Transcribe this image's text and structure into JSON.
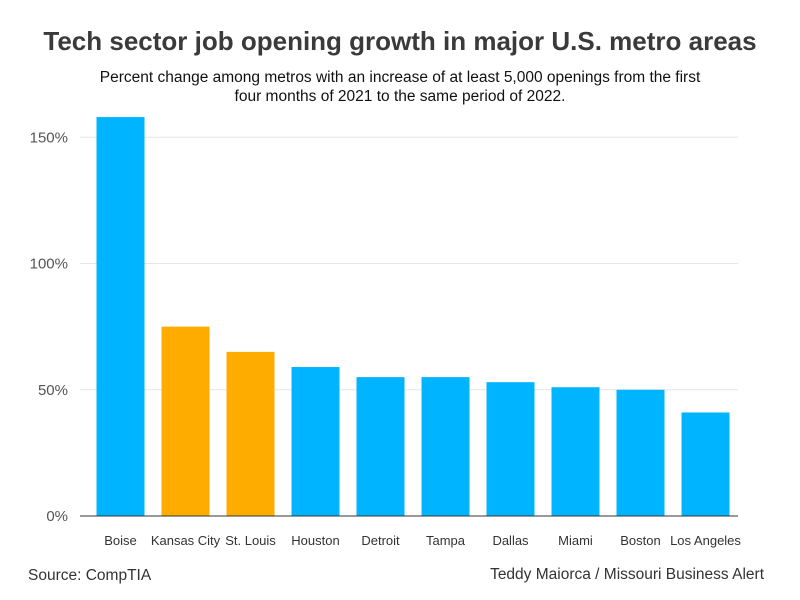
{
  "chart_data": {
    "type": "bar",
    "title": "Tech sector job opening growth in major U.S. metro areas",
    "subtitle_line1": "Percent change among metros with an increase of at least 5,000 openings from the first",
    "subtitle_line2": "four months of 2021 to the same period of 2022.",
    "categories": [
      "Boise",
      "Kansas City",
      "St. Louis",
      "Houston",
      "Detroit",
      "Tampa",
      "Dallas",
      "Miami",
      "Boston",
      "Los Angeles"
    ],
    "values": [
      158,
      75,
      65,
      59,
      55,
      55,
      53,
      51,
      50,
      41
    ],
    "highlight": [
      false,
      true,
      true,
      false,
      false,
      false,
      false,
      false,
      false,
      false
    ],
    "ylim": [
      0,
      160
    ],
    "yticks": [
      0,
      50,
      100,
      150
    ],
    "ytick_labels": [
      "0%",
      "50%",
      "100%",
      "150%"
    ],
    "xlabel": "",
    "ylabel": "",
    "grid": true,
    "colors": {
      "default": "#00b4ff",
      "highlight": "#ffac00",
      "grid": "#e6e6e6",
      "axis": "#333333"
    }
  },
  "footer": {
    "source": "Source: CompTIA",
    "credit": "Teddy Maiorca / Missouri Business Alert"
  }
}
